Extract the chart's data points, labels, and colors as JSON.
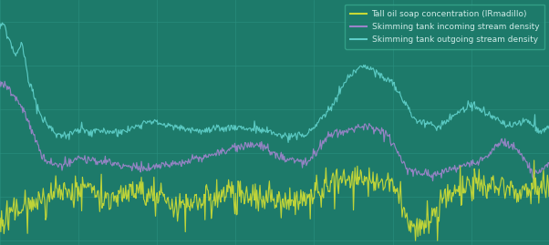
{
  "background_color": "#1d7a6a",
  "grid_color": "#2a9080",
  "legend_bg": "#1d7a6a",
  "legend_edge": "#3aab90",
  "line_yellow": "#c8d936",
  "line_purple": "#9b84c9",
  "line_cyan": "#5ecec8",
  "legend_labels": [
    "Tall oil soap concentration (IRmadillo)",
    "Skimming tank incoming stream density",
    "Skimming tank outgoing stream density"
  ],
  "legend_text_color": "#d0ece8",
  "n_points": 700
}
